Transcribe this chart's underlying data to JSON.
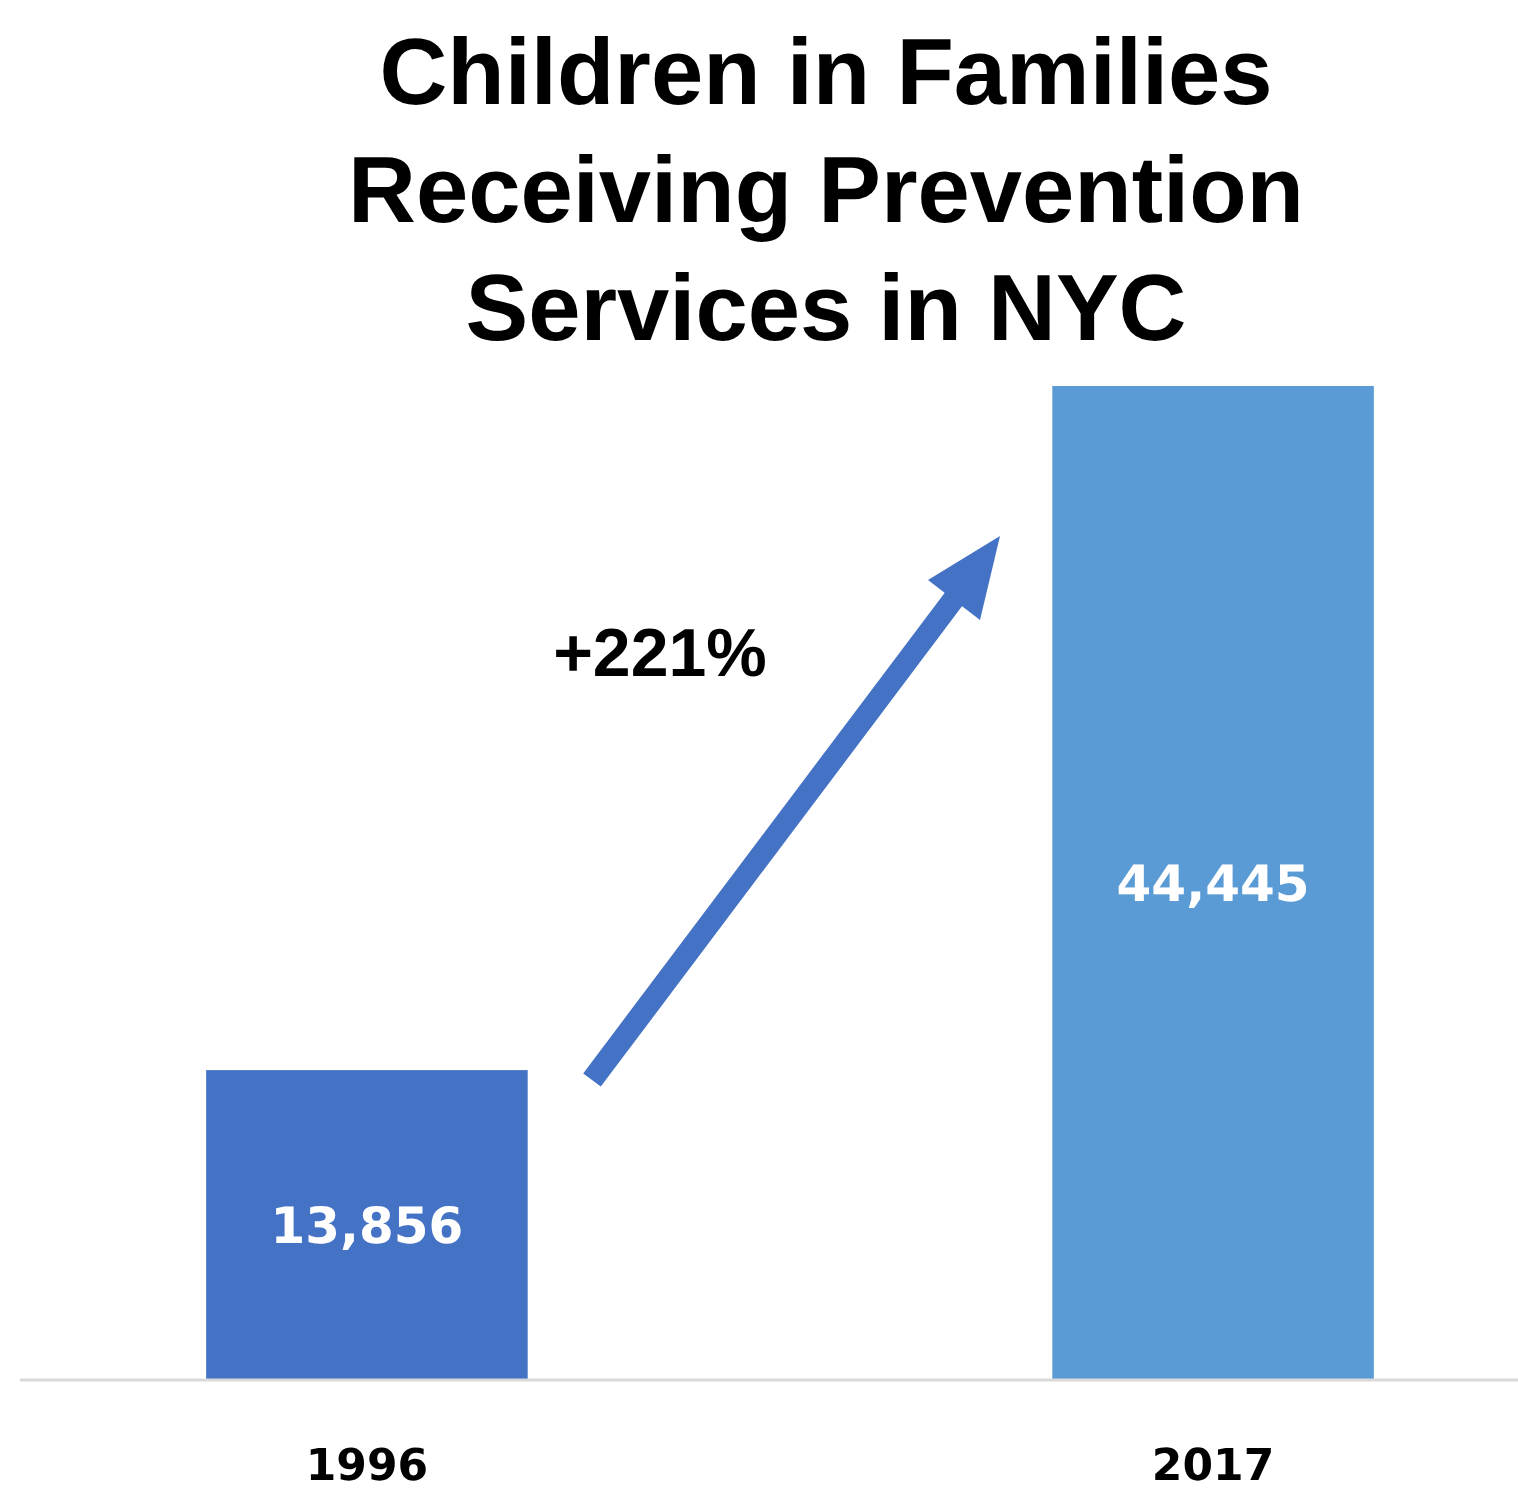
{
  "chart_data": {
    "type": "bar",
    "title": "Children in Families Receiving Prevention Services in NYC",
    "categories": [
      "1996",
      "2017"
    ],
    "values": [
      13856,
      44445
    ],
    "colors": [
      "#4472c4",
      "#5b9bd5"
    ],
    "value_labels": [
      "13,856",
      "44,445"
    ],
    "annotations": [
      "+221%"
    ]
  }
}
